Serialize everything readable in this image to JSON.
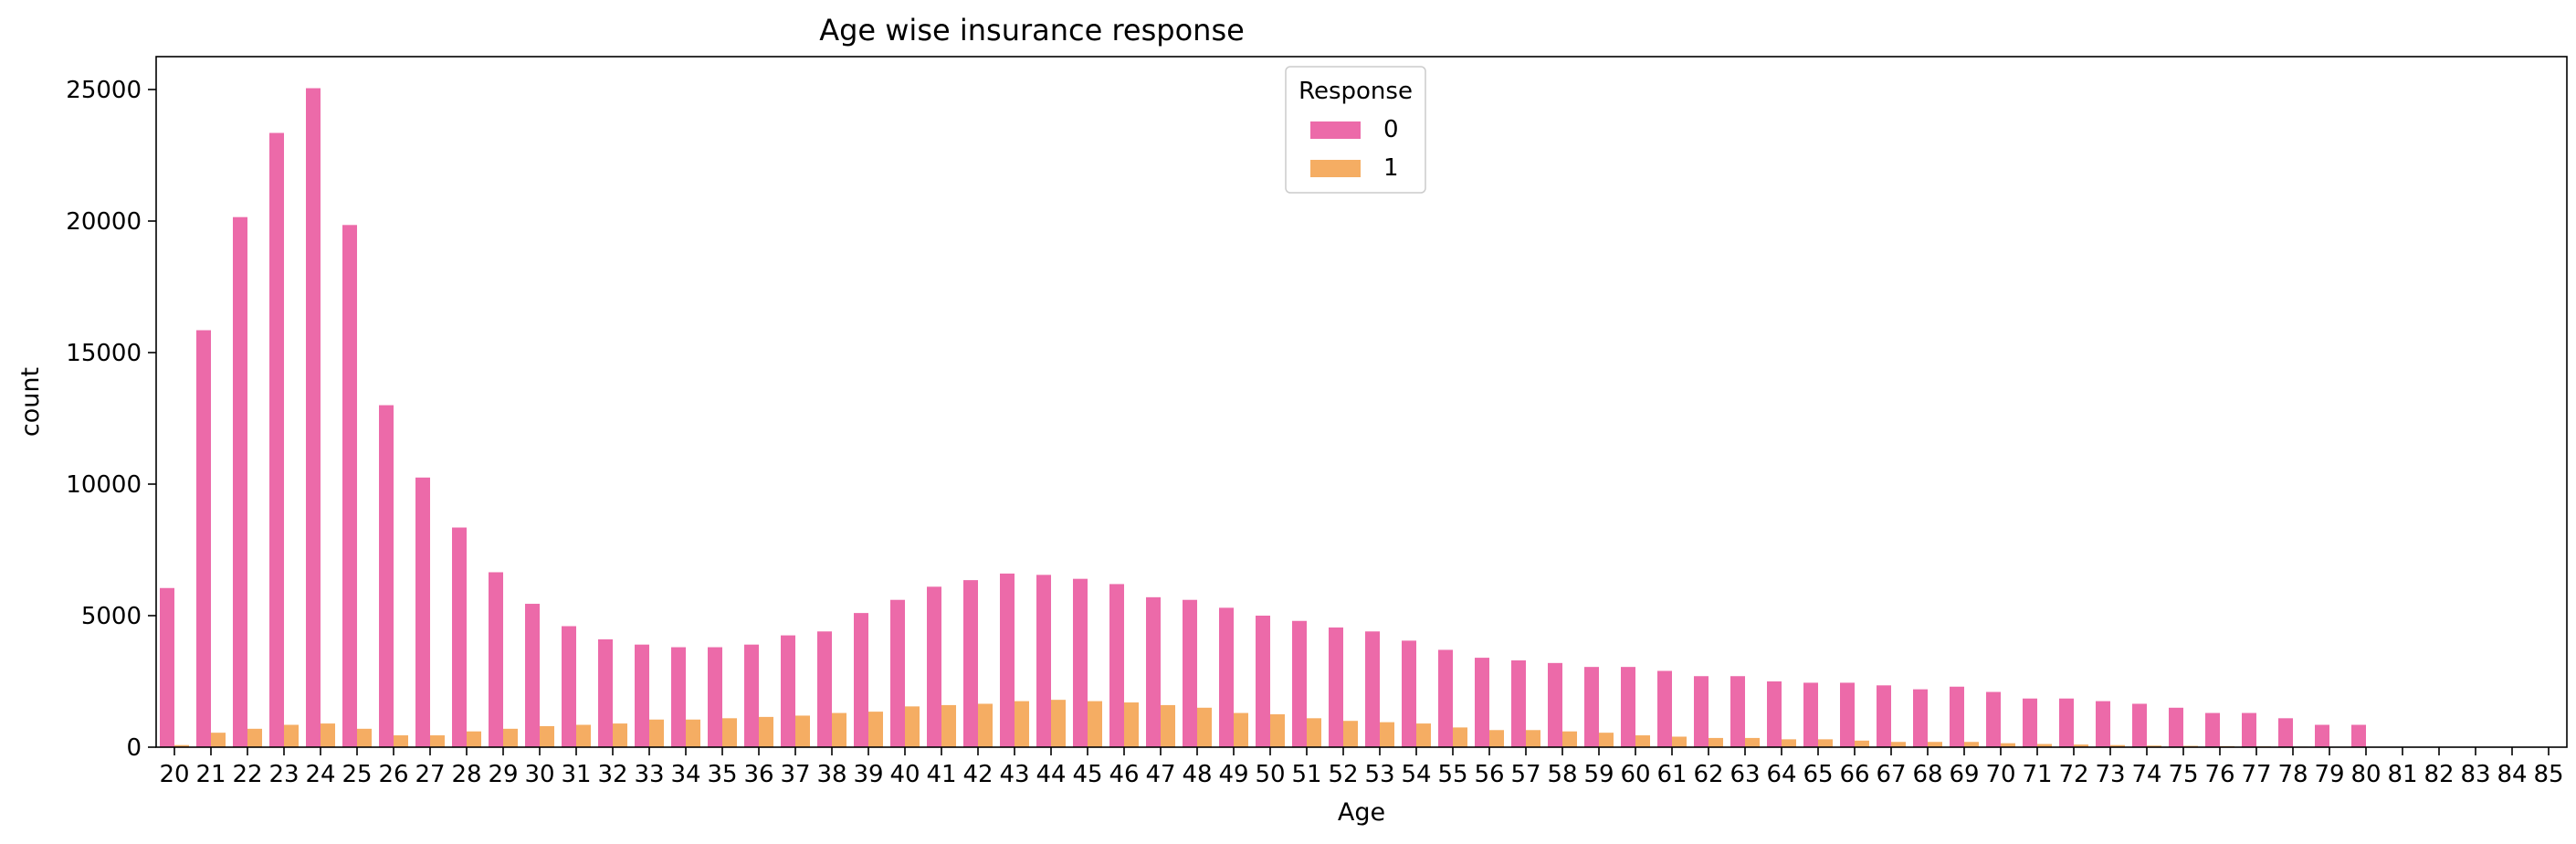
{
  "chart_data": {
    "type": "bar",
    "title": "Age wise insurance response",
    "xlabel": "Age",
    "ylabel": "count",
    "ylim": [
      0,
      26250
    ],
    "yticks": [
      0,
      5000,
      10000,
      15000,
      20000,
      25000
    ],
    "categories": [
      "20",
      "21",
      "22",
      "23",
      "24",
      "25",
      "26",
      "27",
      "28",
      "29",
      "30",
      "31",
      "32",
      "33",
      "34",
      "35",
      "36",
      "37",
      "38",
      "39",
      "40",
      "41",
      "42",
      "43",
      "44",
      "45",
      "46",
      "47",
      "48",
      "49",
      "50",
      "51",
      "52",
      "53",
      "54",
      "55",
      "56",
      "57",
      "58",
      "59",
      "60",
      "61",
      "62",
      "63",
      "64",
      "65",
      "66",
      "67",
      "68",
      "69",
      "70",
      "71",
      "72",
      "73",
      "74",
      "75",
      "76",
      "77",
      "78",
      "79",
      "80",
      "81",
      "82",
      "83",
      "84",
      "85"
    ],
    "legend": {
      "title": "Response",
      "placement": "top-center"
    },
    "series": [
      {
        "name": "0",
        "color": "#ec6aa9",
        "values": [
          6050,
          15850,
          20150,
          23350,
          25050,
          19850,
          13000,
          10250,
          8350,
          6650,
          5450,
          4600,
          4100,
          3900,
          3800,
          3800,
          3900,
          4250,
          4400,
          5100,
          5600,
          6100,
          6350,
          6600,
          6550,
          6400,
          6200,
          5700,
          5600,
          5300,
          5000,
          4800,
          4550,
          4400,
          4050,
          3700,
          3400,
          3300,
          3200,
          3050,
          3050,
          2900,
          2700,
          2700,
          2500,
          2450,
          2450,
          2350,
          2200,
          2300,
          2100,
          1850,
          1850,
          1750,
          1650,
          1500,
          1300,
          1300,
          1100,
          850,
          850,
          10,
          10,
          5,
          5,
          5
        ]
      },
      {
        "name": "1",
        "color": "#f5ad63",
        "values": [
          80,
          550,
          700,
          850,
          900,
          700,
          450,
          450,
          600,
          700,
          800,
          850,
          900,
          1050,
          1050,
          1100,
          1150,
          1200,
          1300,
          1350,
          1550,
          1600,
          1650,
          1750,
          1800,
          1750,
          1700,
          1600,
          1500,
          1300,
          1250,
          1100,
          1000,
          950,
          900,
          750,
          650,
          650,
          600,
          550,
          450,
          400,
          350,
          350,
          300,
          300,
          250,
          200,
          200,
          200,
          150,
          120,
          100,
          80,
          60,
          50,
          40,
          30,
          20,
          10,
          10,
          0,
          0,
          0,
          0,
          0
        ]
      }
    ]
  }
}
